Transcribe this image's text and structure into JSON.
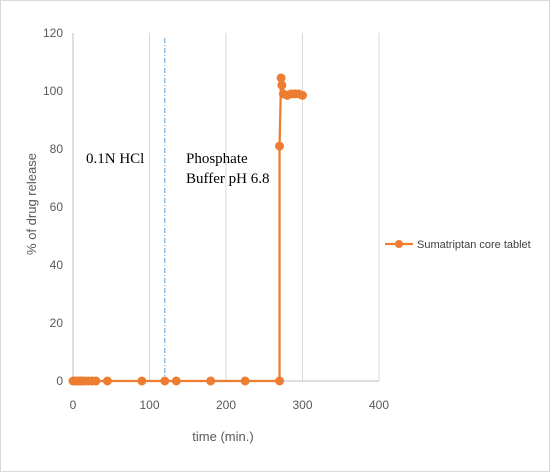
{
  "chart_data": {
    "type": "line",
    "title": "",
    "xlabel": "time (min.)",
    "ylabel": "% of drug release",
    "xlim": [
      0,
      400
    ],
    "ylim": [
      0,
      120
    ],
    "x_ticks": [
      0,
      100,
      200,
      300,
      400
    ],
    "y_ticks": [
      0,
      20,
      40,
      60,
      80,
      100,
      120
    ],
    "grid": "vertical",
    "legend_position": "right",
    "series": [
      {
        "name": "Sumatriptan core tablet",
        "color": "#ED7D31",
        "marker": "circle",
        "x": [
          0,
          2,
          5,
          8,
          10,
          12,
          15,
          20,
          25,
          30,
          45,
          90,
          120,
          135,
          180,
          225,
          270,
          270,
          272,
          273,
          275,
          280,
          285,
          290,
          295,
          300
        ],
        "y": [
          0,
          0,
          0,
          0,
          0,
          0,
          0,
          0,
          0,
          0,
          0,
          0,
          0,
          0,
          0,
          0,
          0,
          81,
          104.5,
          102,
          99,
          98.5,
          99,
          99,
          99,
          98.5
        ]
      }
    ],
    "reference_line": {
      "x": 120,
      "style": "dash-dot",
      "color": "#5B9BD5"
    },
    "annotations": [
      {
        "lines": [
          "0.1N HCl"
        ]
      },
      {
        "lines": [
          "Phosphate",
          "Buffer pH 6.8"
        ]
      }
    ]
  }
}
